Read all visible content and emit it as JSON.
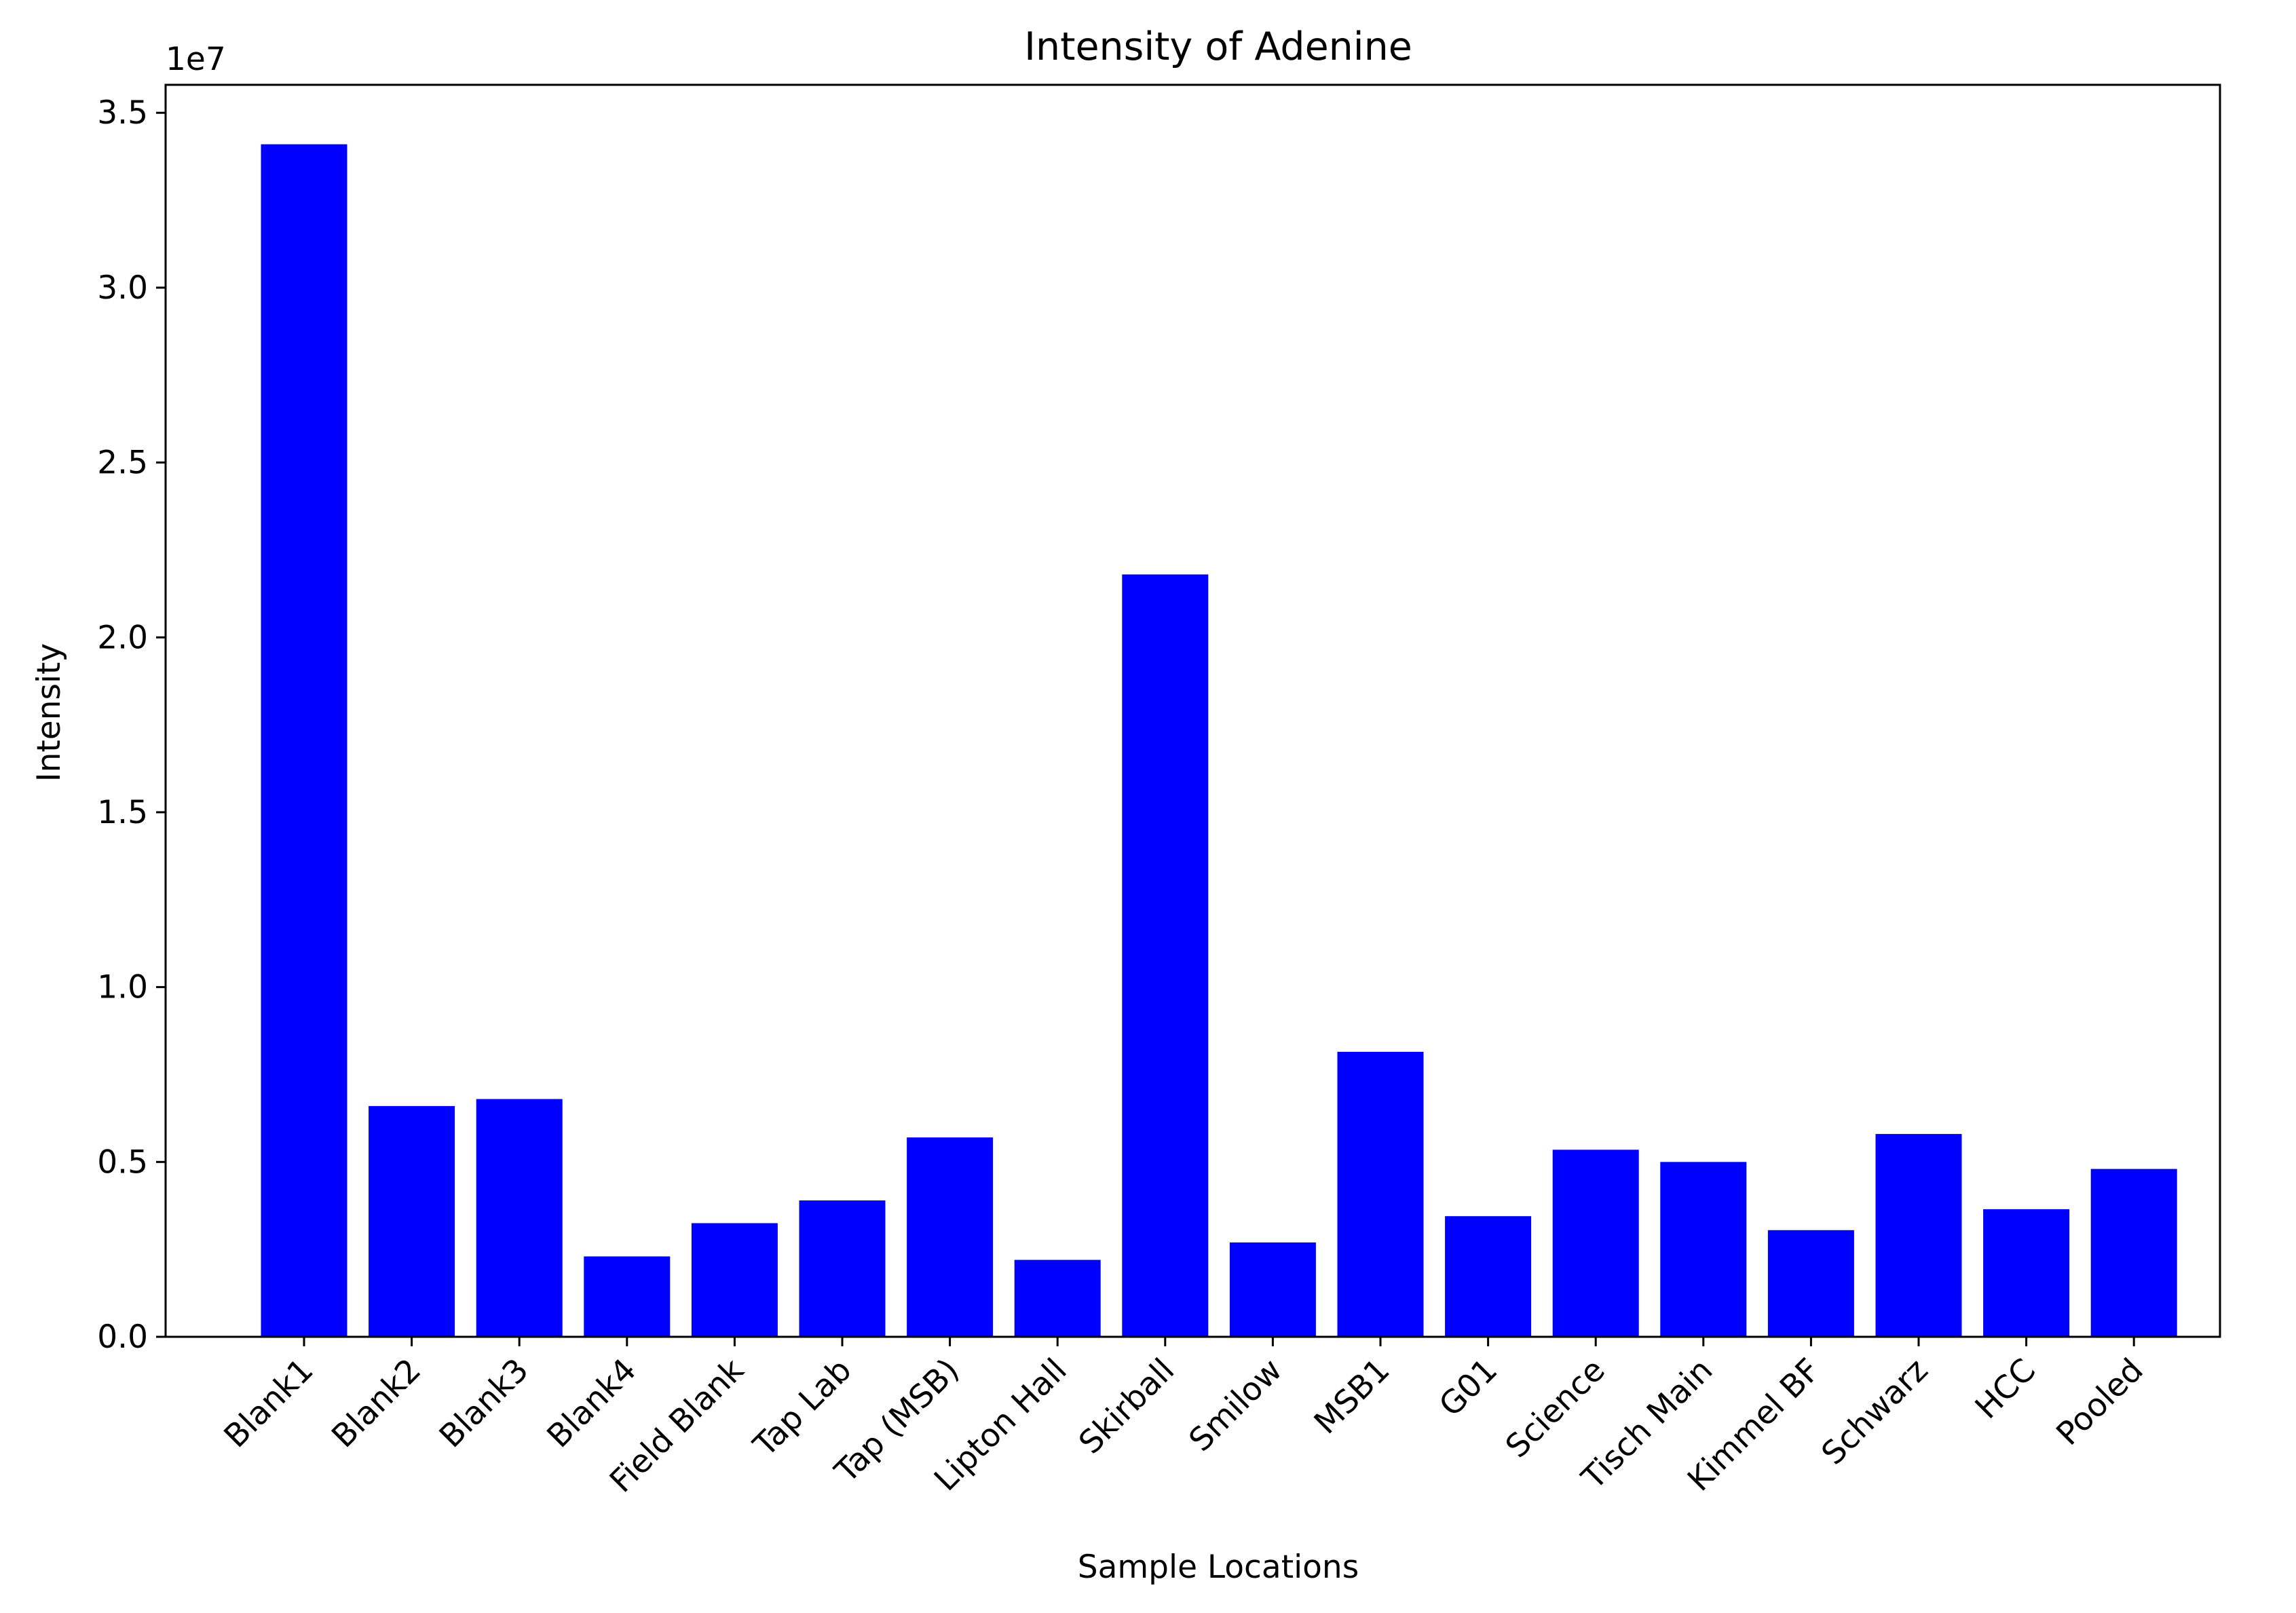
{
  "chart_data": {
    "type": "bar",
    "title": "Intensity of Adenine",
    "xlabel": "Sample Locations",
    "ylabel": "Intensity",
    "y_offset_label": "1e7",
    "y_scale": 10000000,
    "ylim": [
      0,
      35800000
    ],
    "yticks": [
      0,
      5000000,
      10000000,
      15000000,
      20000000,
      25000000,
      30000000,
      35000000
    ],
    "ytick_labels": [
      "0.0",
      "0.5",
      "1.0",
      "1.5",
      "2.0",
      "2.5",
      "3.0",
      "3.5"
    ],
    "categories": [
      "Blank1",
      "Blank2",
      "Blank3",
      "Blank4",
      "Field Blank",
      "Tap Lab",
      "Tap (MSB)",
      "Lipton Hall",
      "Skirball",
      "Smilow",
      "MSB1",
      "G01",
      "Science",
      "Tisch Main",
      "Kimmel BF",
      "Schwarz",
      "HCC",
      "Pooled"
    ],
    "values": [
      34100000,
      6600000,
      6800000,
      2300000,
      3250000,
      3900000,
      5700000,
      2200000,
      21800000,
      2700000,
      8150000,
      3450000,
      5350000,
      5000000,
      3050000,
      5800000,
      3650000,
      4800000
    ],
    "bar_color": "#0000ff",
    "grid": false,
    "legend": "none"
  }
}
